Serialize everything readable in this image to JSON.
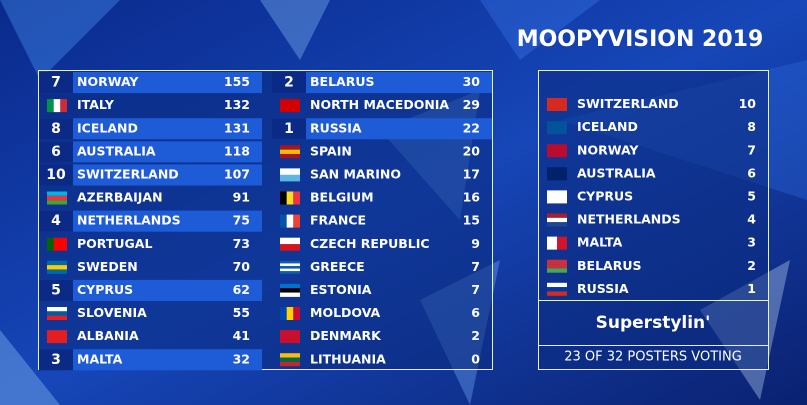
{
  "header": {
    "title": "MOOPYVISION 2019"
  },
  "scoreboard": {
    "columns": [
      {
        "rows": [
          {
            "points": 7,
            "country": "NORWAY",
            "total": 155
          },
          {
            "country": "ITALY",
            "total": 132
          },
          {
            "points": 8,
            "country": "ICELAND",
            "total": 131
          },
          {
            "points": 6,
            "country": "AUSTRALIA",
            "total": 118
          },
          {
            "points": 10,
            "country": "SWITZERLAND",
            "total": 107
          },
          {
            "country": "AZERBAIJAN",
            "total": 91
          },
          {
            "points": 4,
            "country": "NETHERLANDS",
            "total": 75
          },
          {
            "country": "PORTUGAL",
            "total": 73
          },
          {
            "country": "SWEDEN",
            "total": 70
          },
          {
            "points": 5,
            "country": "CYPRUS",
            "total": 62
          },
          {
            "country": "SLOVENIA",
            "total": 55
          },
          {
            "country": "ALBANIA",
            "total": 41
          },
          {
            "points": 3,
            "country": "MALTA",
            "total": 32
          }
        ]
      },
      {
        "rows": [
          {
            "points": 2,
            "country": "BELARUS",
            "total": 30
          },
          {
            "country": "NORTH MACEDONIA",
            "total": 29
          },
          {
            "points": 1,
            "country": "RUSSIA",
            "total": 22
          },
          {
            "country": "SPAIN",
            "total": 20
          },
          {
            "country": "SAN MARINO",
            "total": 17
          },
          {
            "country": "BELGIUM",
            "total": 16
          },
          {
            "country": "FRANCE",
            "total": 15
          },
          {
            "country": "CZECH REPUBLIC",
            "total": 9
          },
          {
            "country": "GREECE",
            "total": 7
          },
          {
            "country": "ESTONIA",
            "total": 7
          },
          {
            "country": "MOLDOVA",
            "total": 6
          },
          {
            "country": "DENMARK",
            "total": 2
          },
          {
            "country": "LITHUANIA",
            "total": 0
          }
        ]
      }
    ]
  },
  "votes": {
    "rows": [
      {
        "country": "SWITZERLAND",
        "points": 10
      },
      {
        "country": "ICELAND",
        "points": 8
      },
      {
        "country": "NORWAY",
        "points": 7
      },
      {
        "country": "AUSTRALIA",
        "points": 6
      },
      {
        "country": "CYPRUS",
        "points": 5
      },
      {
        "country": "NETHERLANDS",
        "points": 4
      },
      {
        "country": "MALTA",
        "points": 3
      },
      {
        "country": "BELARUS",
        "points": 2
      },
      {
        "country": "RUSSIA",
        "points": 1
      }
    ],
    "voter": "Superstylin'",
    "status": "23 OF 32 POSTERS VOTING"
  }
}
